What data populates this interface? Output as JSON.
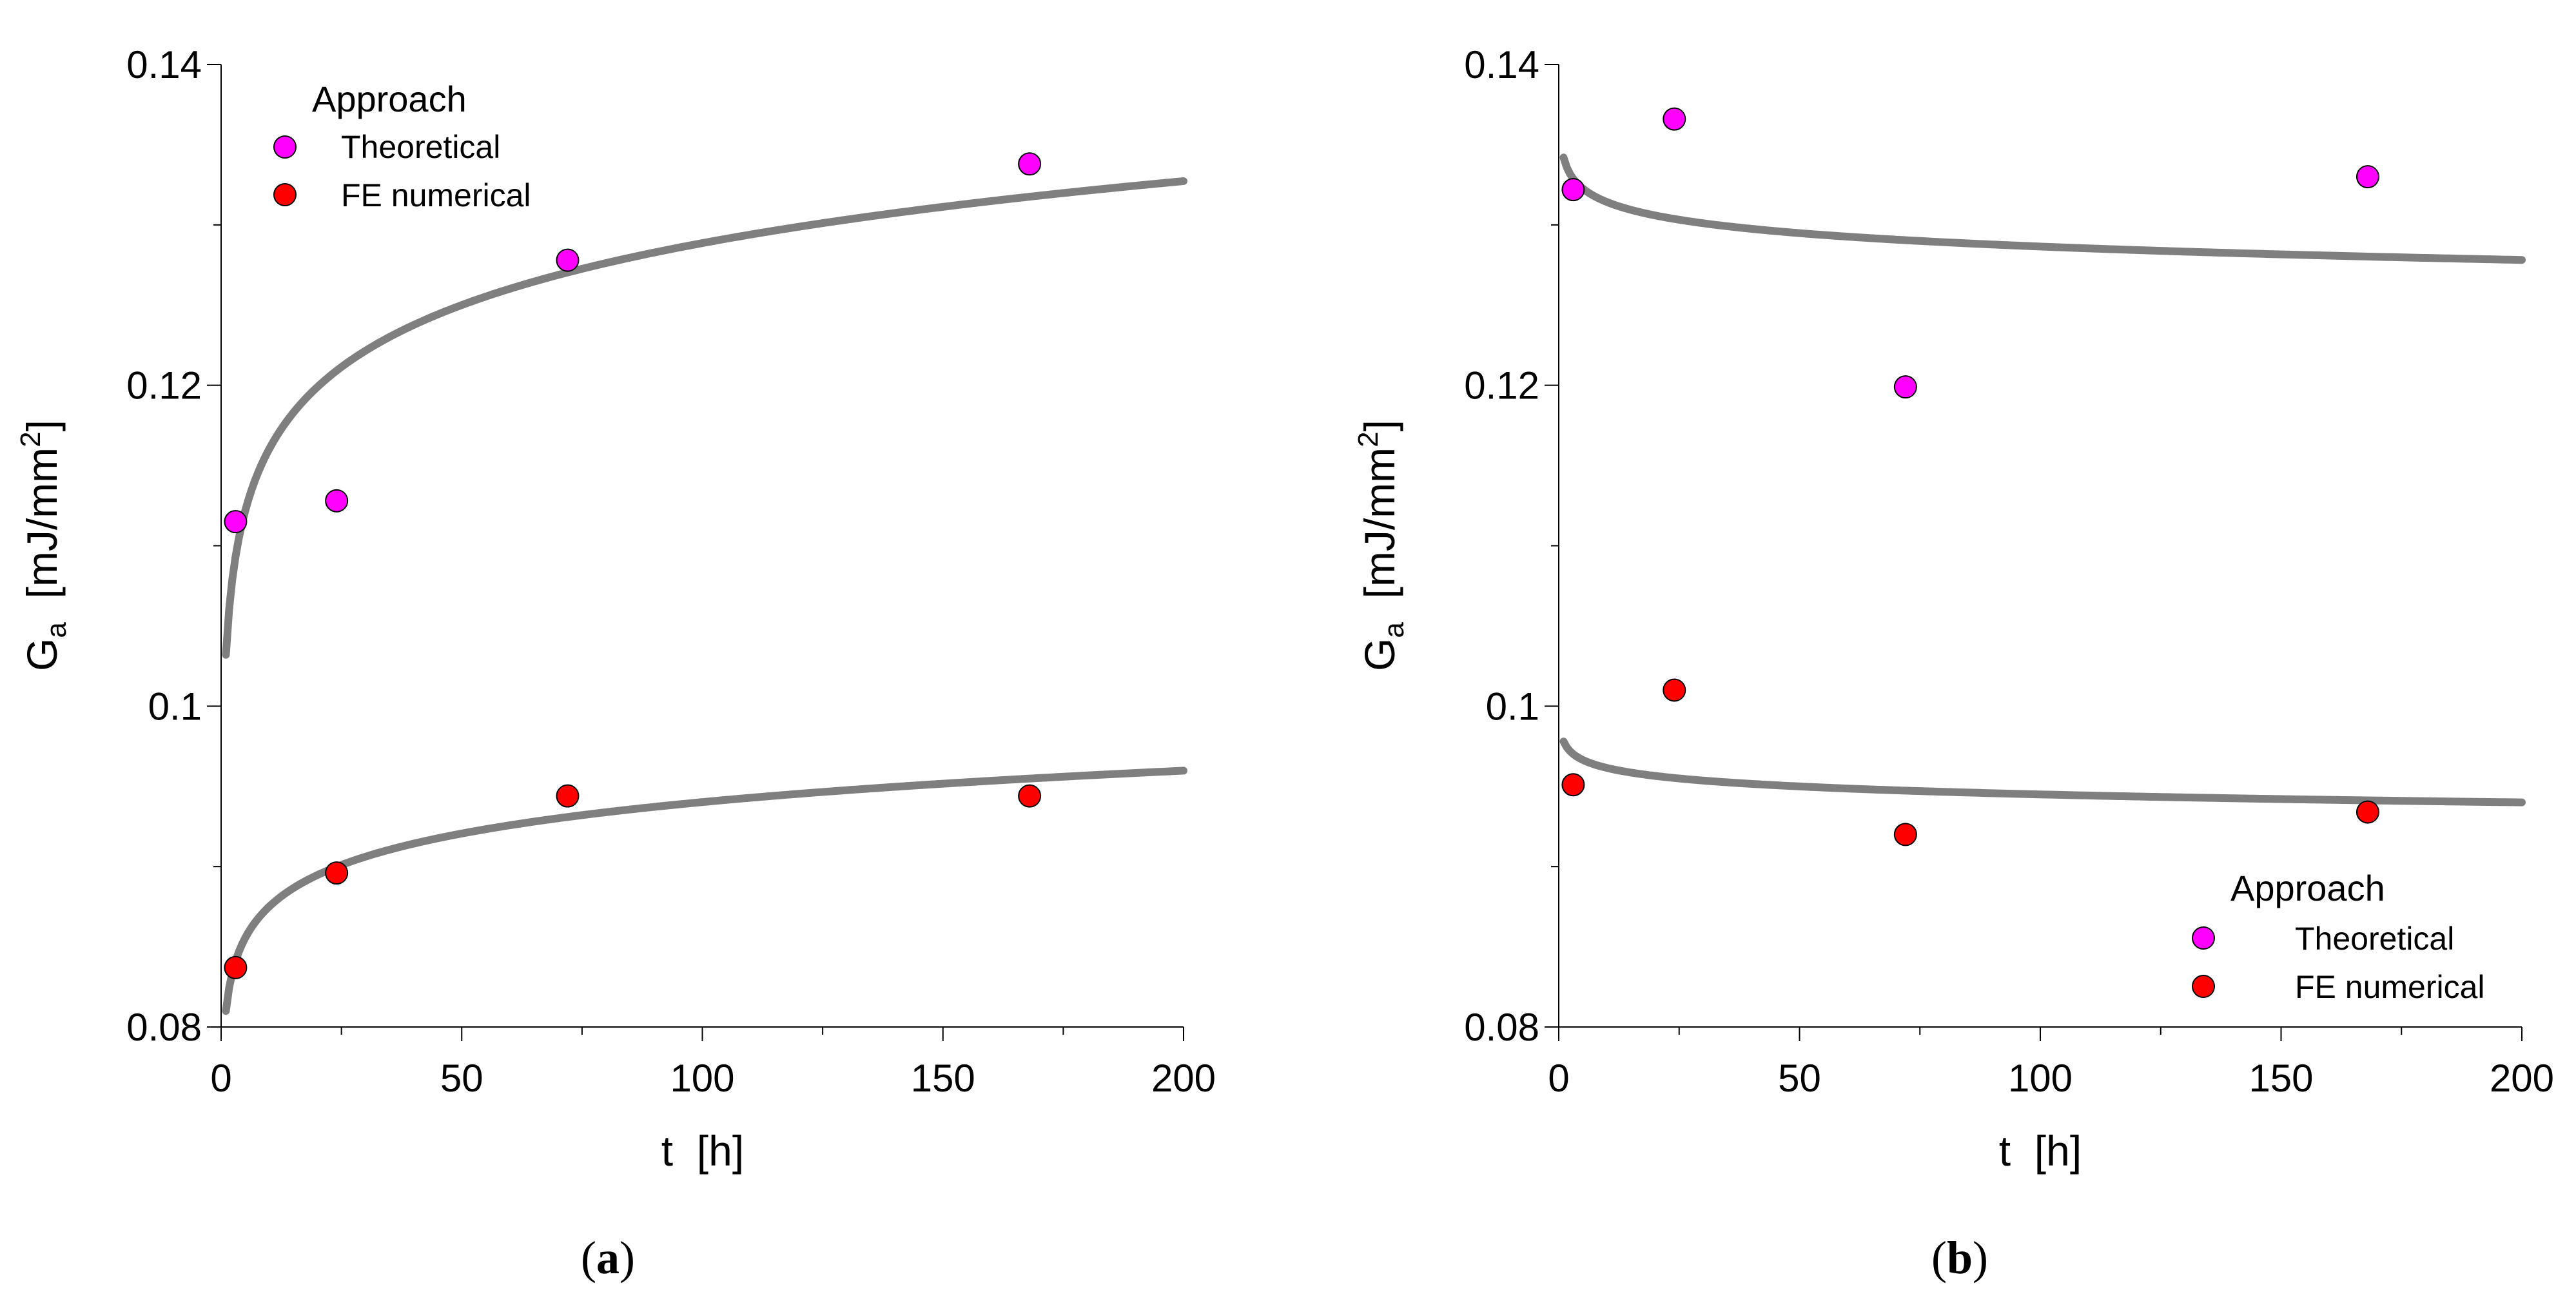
{
  "chart_data": [
    {
      "type": "scatter",
      "panel": "a",
      "panel_label": "(a)",
      "panel_letter": "a",
      "xlabel": "t  [h]",
      "ylabel_main": "G",
      "ylabel_sub": "a",
      "ylabel_unit": "  [mJ/mm",
      "ylabel_sup": "2",
      "ylabel_close": "]",
      "xlim": [
        0,
        200
      ],
      "ylim": [
        0.08,
        0.14
      ],
      "xticks": [
        0,
        50,
        100,
        150,
        200
      ],
      "xtick_labels": [
        "0",
        "50",
        "100",
        "150",
        "200"
      ],
      "yticks": [
        0.08,
        0.1,
        0.12,
        0.14
      ],
      "ytick_labels": [
        "0.08",
        "0.1",
        "0.12",
        "0.14"
      ],
      "legend": {
        "title": "Approach",
        "position": "top-left",
        "entries": [
          "Theoretical",
          "FE numerical"
        ]
      },
      "series": [
        {
          "name": "Theoretical",
          "color": "#ff00ff",
          "x": [
            3,
            24,
            72,
            168
          ],
          "y": [
            0.1115,
            0.1128,
            0.1278,
            0.1338
          ]
        },
        {
          "name": "FE numerical",
          "color": "#ff0000",
          "x": [
            3,
            24,
            72,
            168
          ],
          "y": [
            0.0837,
            0.0896,
            0.0944,
            0.0944
          ]
        }
      ],
      "fits": [
        {
          "name": "Theoretical fit",
          "color": "#7f7f7f",
          "a": 0.1032,
          "b": 0.005573,
          "xrange": [
            1,
            200
          ]
        },
        {
          "name": "FE numerical fit",
          "color": "#7f7f7f",
          "a": 0.081,
          "b": 0.002827,
          "xrange": [
            1,
            200
          ]
        }
      ]
    },
    {
      "type": "scatter",
      "panel": "b",
      "panel_label": "(b)",
      "panel_letter": "b",
      "xlabel": "t  [h]",
      "ylabel_main": "G",
      "ylabel_sub": "a",
      "ylabel_unit": "  [mJ/mm",
      "ylabel_sup": "2",
      "ylabel_close": "]",
      "xlim": [
        0,
        200
      ],
      "ylim": [
        0.08,
        0.14
      ],
      "xticks": [
        0,
        50,
        100,
        150,
        200
      ],
      "xtick_labels": [
        "0",
        "50",
        "100",
        "150",
        "200"
      ],
      "yticks": [
        0.08,
        0.1,
        0.12,
        0.14
      ],
      "ytick_labels": [
        "0.08",
        "0.1",
        "0.12",
        "0.14"
      ],
      "legend": {
        "title": "Approach",
        "position": "bottom-right",
        "entries": [
          "Theoretical",
          "FE numerical"
        ]
      },
      "series": [
        {
          "name": "Theoretical",
          "color": "#ff00ff",
          "x": [
            3,
            24,
            72,
            168
          ],
          "y": [
            0.1322,
            0.1366,
            0.1199,
            0.133
          ]
        },
        {
          "name": "FE numerical",
          "color": "#ff0000",
          "x": [
            3,
            24,
            72,
            168
          ],
          "y": [
            0.0951,
            0.101,
            0.092,
            0.0934
          ]
        }
      ],
      "fits": [
        {
          "name": "Theoretical fit",
          "color": "#7f7f7f",
          "a": 0.1342,
          "b": -0.001205,
          "xrange": [
            1,
            200
          ]
        },
        {
          "name": "FE numerical fit",
          "color": "#7f7f7f",
          "a": 0.0978,
          "b": -0.000717,
          "xrange": [
            1,
            200
          ]
        }
      ]
    }
  ]
}
